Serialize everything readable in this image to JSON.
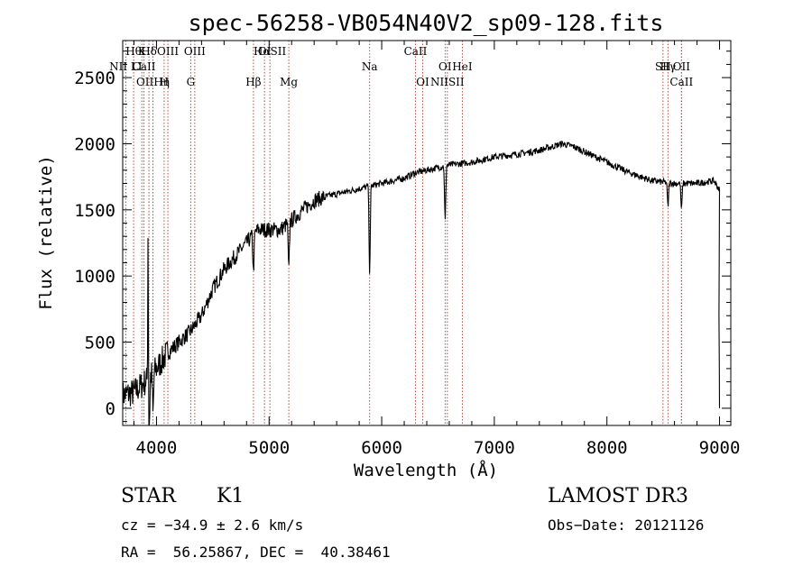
{
  "chart_data": {
    "type": "line",
    "title": "spec-56258-VB054N40V2_sp09-128.fits",
    "xlabel": "Wavelength (Å)",
    "ylabel": "Flux (relative)",
    "xlim": [
      3700,
      9100
    ],
    "ylim": [
      -130,
      2780
    ],
    "xticks": [
      4000,
      5000,
      6000,
      7000,
      8000,
      9000
    ],
    "yticks": [
      0,
      500,
      1000,
      1500,
      2000,
      2500
    ],
    "grid": false,
    "spectrum_anchors": {
      "x": [
        3700,
        3800,
        3900,
        4000,
        4100,
        4200,
        4300,
        4400,
        4500,
        4600,
        4700,
        4800,
        4900,
        5000,
        5100,
        5200,
        5300,
        5400,
        5500,
        5600,
        5700,
        5800,
        5900,
        6000,
        6100,
        6200,
        6300,
        6400,
        6500,
        6600,
        6700,
        6800,
        6900,
        7000,
        7200,
        7400,
        7600,
        7700,
        7800,
        8000,
        8200,
        8400,
        8600,
        8800,
        8950,
        9000
      ],
      "y": [
        100,
        120,
        200,
        300,
        420,
        500,
        580,
        700,
        900,
        1050,
        1150,
        1250,
        1350,
        1350,
        1350,
        1420,
        1500,
        1570,
        1600,
        1620,
        1640,
        1660,
        1680,
        1700,
        1720,
        1740,
        1780,
        1800,
        1820,
        1840,
        1850,
        1860,
        1880,
        1900,
        1920,
        1950,
        2000,
        1980,
        1940,
        1860,
        1780,
        1720,
        1700,
        1700,
        1720,
        1650
      ]
    },
    "absorption_dips": [
      {
        "x": 3934,
        "depth": 500
      },
      {
        "x": 3969,
        "depth": 350
      },
      {
        "x": 4861,
        "depth": 300
      },
      {
        "x": 5175,
        "depth": 400
      },
      {
        "x": 5893,
        "depth": 700
      },
      {
        "x": 6563,
        "depth": 450
      },
      {
        "x": 8542,
        "depth": 200
      },
      {
        "x": 8662,
        "depth": 220
      }
    ],
    "emission_spikes": [
      {
        "x": 3925,
        "height": 1400
      }
    ],
    "spectral_lines": [
      {
        "x": 3797,
        "label": "Hθ",
        "row": 0
      },
      {
        "x": 3870,
        "label": "K",
        "row": 0
      },
      {
        "x": 3933,
        "label": "Hδ",
        "row": 0
      },
      {
        "x": 4101,
        "label": "OIII",
        "row": 0
      },
      {
        "x": 4340,
        "label": "OIII",
        "row": 0
      },
      {
        "x": 4959,
        "label": "OI",
        "row": 0
      },
      {
        "x": 5007,
        "label": "HαSII",
        "row": 0
      },
      {
        "x": 6300,
        "label": "CaII",
        "row": 0
      },
      {
        "x": 6563,
        "label": "OI",
        "row": 1
      },
      {
        "x": 6716,
        "label": "HeI",
        "row": 1
      },
      {
        "x": 8498,
        "label": "SII",
        "row": 1
      },
      {
        "x": 8542,
        "label": "Hγ",
        "row": 1
      },
      {
        "x": 8662,
        "label": "OII",
        "row": 1
      },
      {
        "x": 3727,
        "label": "NII LI",
        "row": 1
      },
      {
        "x": 3889,
        "label": "CaII",
        "row": 1
      },
      {
        "x": 3968,
        "label": "OIIHη",
        "row": 2
      },
      {
        "x": 4068,
        "label": "H",
        "row": 2
      },
      {
        "x": 4304,
        "label": "G",
        "row": 2
      },
      {
        "x": 4861,
        "label": "Hβ",
        "row": 2
      },
      {
        "x": 5175,
        "label": "Mg",
        "row": 2
      },
      {
        "x": 5893,
        "label": "Na",
        "row": 1
      },
      {
        "x": 6364,
        "label": "OI",
        "row": 2
      },
      {
        "x": 6583,
        "label": "NIISII",
        "row": 2
      },
      {
        "x": 8662,
        "label": "CaII",
        "row": 2
      }
    ]
  },
  "info": {
    "object_class": "STAR",
    "subclass": "K1",
    "survey": "LAMOST DR3",
    "redshift": "cz = −34.9 ± 2.6 km/s",
    "obs_date": "Obs−Date: 20121126",
    "coordinates": "RA =  56.25867, DEC =  40.38461"
  }
}
